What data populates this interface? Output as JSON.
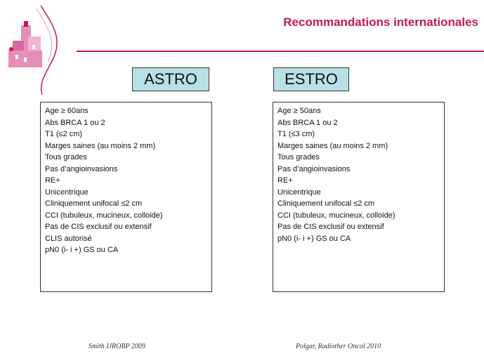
{
  "header": {
    "title": "Recommandations internationales"
  },
  "colors": {
    "accent": "#c2185b",
    "label_bg": "#b7e1e4"
  },
  "left": {
    "label": "ASTRO",
    "criteria": [
      "Age ≥ 60ans",
      "Abs BRCA 1 ou 2",
      "T1 (≤2 cm)",
      "Marges saines (au moins 2 mm)",
      "Tous grades",
      "Pas d’angioinvasions",
      "RE+",
      "Unicentrique",
      "Cliniquement unifocal ≤2 cm",
      "CCI (tubuleux, mucineux, colloide)",
      "Pas de CIS exclusif ou extensif",
      "CLIS autorisé",
      "pN0 (i- i +) GS ou CA"
    ],
    "reference": "Smith IJROBP 2009"
  },
  "right": {
    "label": "ESTRO",
    "criteria": [
      "Age ≥ 50ans",
      "Abs BRCA 1 ou 2",
      "T1 (≤3 cm)",
      "Marges saines (au moins 2 mm)",
      "Tous grades",
      "Pas d’angioinvasions",
      "RE+",
      "Unicentrique",
      "Cliniquement unifocal ≤2 cm",
      "CCI (tubuleux, mucineux, colloide)",
      "Pas de CIS exclusif ou extensif",
      "pN0 (i- i +) GS ou CA"
    ],
    "reference": "Polgar, Radiother Oncol 2010"
  }
}
